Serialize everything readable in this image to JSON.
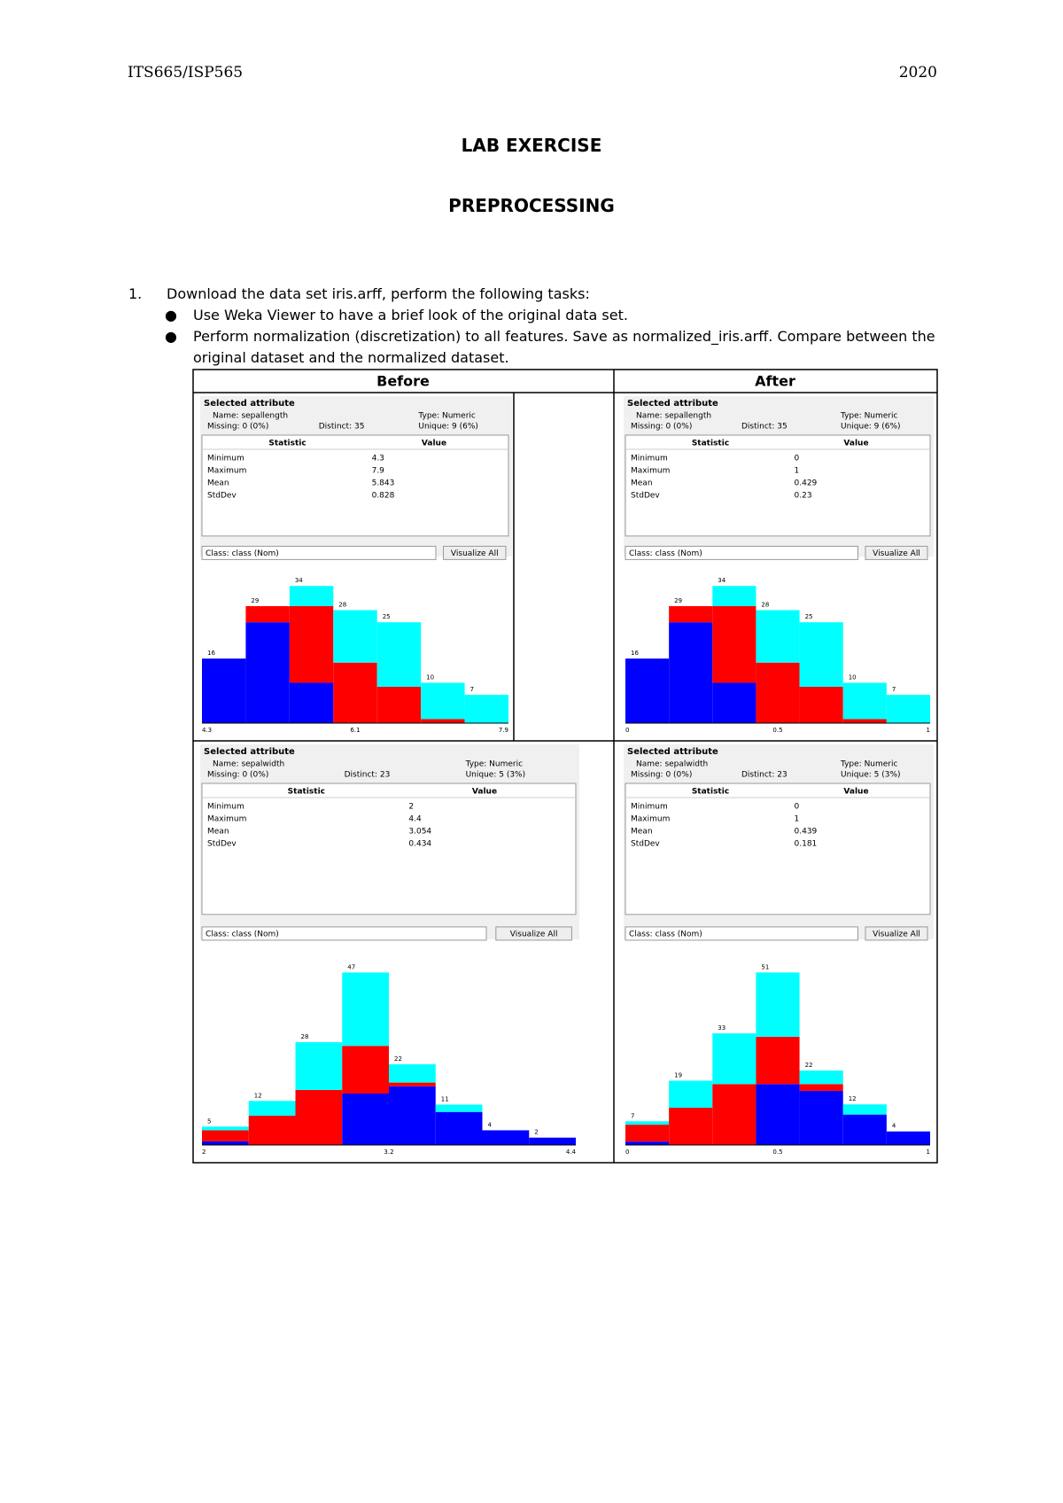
{
  "header": {
    "left": "ITS665/ISP565",
    "right": "2020"
  },
  "title": "LAB EXERCISE",
  "subtitle": "PREPROCESSING",
  "task": {
    "number": "1.",
    "text": "Download the data set iris.arff, perform the following tasks:",
    "bullets": [
      "Use Weka Viewer to have a brief look of the original data set.",
      "Perform normalization (discretization) to all features. Save as normalized_iris.arff. Compare between the original dataset and the normalized dataset."
    ]
  },
  "table": {
    "headers": [
      "Before",
      "After"
    ],
    "colors": {
      "blue": "#0000ff",
      "red": "#ff0000",
      "cyan": "#00ffff"
    },
    "panels": [
      {
        "group": "Selected attribute",
        "name": "Name: sepallength",
        "type": "Type: Numeric",
        "missing": "Missing: 0 (0%)",
        "distinct": "Distinct: 35",
        "unique": "Unique: 9 (6%)",
        "stat_headers": [
          "Statistic",
          "Value"
        ],
        "stats": [
          [
            "Minimum",
            "4.3"
          ],
          [
            "Maximum",
            "7.9"
          ],
          [
            "Mean",
            "5.843"
          ],
          [
            "StdDev",
            "0.828"
          ]
        ],
        "class": "Class: class (Nom)",
        "button": "Visualize All",
        "axis": [
          "4.3",
          "6.1",
          "7.9"
        ],
        "bars": [
          {
            "total": 16,
            "blue": 16,
            "red": 0,
            "cyan": 0
          },
          {
            "total": 29,
            "blue": 25,
            "red": 4,
            "cyan": 0
          },
          {
            "total": 34,
            "blue": 10,
            "red": 19,
            "cyan": 5
          },
          {
            "total": 28,
            "blue": 0,
            "red": 15,
            "cyan": 13
          },
          {
            "total": 25,
            "blue": 0,
            "red": 9,
            "cyan": 16
          },
          {
            "total": 10,
            "blue": 0,
            "red": 1,
            "cyan": 9
          },
          {
            "total": 7,
            "blue": 0,
            "red": 0,
            "cyan": 7
          }
        ]
      },
      {
        "group": "Selected attribute",
        "name": "Name: sepallength",
        "type": "Type: Numeric",
        "missing": "Missing: 0 (0%)",
        "distinct": "Distinct: 35",
        "unique": "Unique: 9 (6%)",
        "stat_headers": [
          "Statistic",
          "Value"
        ],
        "stats": [
          [
            "Minimum",
            "0"
          ],
          [
            "Maximum",
            "1"
          ],
          [
            "Mean",
            "0.429"
          ],
          [
            "StdDev",
            "0.23"
          ]
        ],
        "class": "Class: class (Nom)",
        "button": "Visualize All",
        "axis": [
          "0",
          "0.5",
          "1"
        ],
        "bars": [
          {
            "total": 16,
            "blue": 16,
            "red": 0,
            "cyan": 0
          },
          {
            "total": 29,
            "blue": 25,
            "red": 4,
            "cyan": 0
          },
          {
            "total": 34,
            "blue": 10,
            "red": 19,
            "cyan": 5
          },
          {
            "total": 28,
            "blue": 0,
            "red": 15,
            "cyan": 13
          },
          {
            "total": 25,
            "blue": 0,
            "red": 9,
            "cyan": 16
          },
          {
            "total": 10,
            "blue": 0,
            "red": 1,
            "cyan": 9
          },
          {
            "total": 7,
            "blue": 0,
            "red": 0,
            "cyan": 7
          }
        ]
      },
      {
        "group": "Selected attribute",
        "name": "Name: sepalwidth",
        "type": "Type: Numeric",
        "missing": "Missing: 0 (0%)",
        "distinct": "Distinct: 23",
        "unique": "Unique: 5 (3%)",
        "stat_headers": [
          "Statistic",
          "Value"
        ],
        "stats": [
          [
            "Minimum",
            "2"
          ],
          [
            "Maximum",
            "4.4"
          ],
          [
            "Mean",
            "3.054"
          ],
          [
            "StdDev",
            "0.434"
          ]
        ],
        "class": "Class: class (Nom)",
        "button": "Visualize All",
        "axis": [
          "2",
          "3.2",
          "4.4"
        ],
        "bars": [
          {
            "total": 5,
            "blue": 1,
            "red": 3,
            "cyan": 1
          },
          {
            "total": 12,
            "blue": 0,
            "red": 8,
            "cyan": 4
          },
          {
            "total": 28,
            "blue": 0,
            "red": 15,
            "cyan": 13
          },
          {
            "total": 47,
            "blue": 14,
            "red": 13,
            "cyan": 20
          },
          {
            "total": 22,
            "blue": 16,
            "red": 1,
            "cyan": 5
          },
          {
            "total": 11,
            "blue": 9,
            "red": 0,
            "cyan": 2
          },
          {
            "total": 4,
            "blue": 4,
            "red": 0,
            "cyan": 0
          },
          {
            "total": 2,
            "blue": 2,
            "red": 0,
            "cyan": 0
          }
        ]
      },
      {
        "group": "Selected attribute",
        "name": "Name: sepalwidth",
        "type": "Type: Numeric",
        "missing": "Missing: 0 (0%)",
        "distinct": "Distinct: 23",
        "unique": "Unique: 5 (3%)",
        "stat_headers": [
          "Statistic",
          "Value"
        ],
        "stats": [
          [
            "Minimum",
            "0"
          ],
          [
            "Maximum",
            "1"
          ],
          [
            "Mean",
            "0.439"
          ],
          [
            "StdDev",
            "0.181"
          ]
        ],
        "class": "Class: class (Nom)",
        "button": "Visualize All",
        "axis": [
          "0",
          "0.5",
          "1"
        ],
        "bars": [
          {
            "total": 7,
            "blue": 1,
            "red": 5,
            "cyan": 1
          },
          {
            "total": 19,
            "blue": 0,
            "red": 11,
            "cyan": 8
          },
          {
            "total": 33,
            "blue": 0,
            "red": 18,
            "cyan": 15
          },
          {
            "total": 51,
            "blue": 18,
            "red": 14,
            "cyan": 19
          },
          {
            "total": 22,
            "blue": 16,
            "red": 2,
            "cyan": 4
          },
          {
            "total": 12,
            "blue": 9,
            "red": 0,
            "cyan": 3
          },
          {
            "total": 4,
            "blue": 4,
            "red": 0,
            "cyan": 0
          }
        ]
      }
    ]
  }
}
